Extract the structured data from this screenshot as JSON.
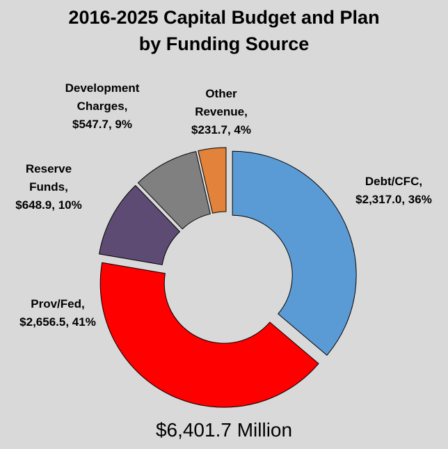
{
  "page": {
    "background": "#D9D9D9"
  },
  "title": {
    "text": "2016-2025 Capital Budget and Plan\nby Funding Source"
  },
  "total": {
    "text": "$6,401.7 Million"
  },
  "callouts": {
    "development_charges": "Development\nCharges,\n$547.7, 9%",
    "other_revenue": "Other\nRevenue,\n$231.7, 4%",
    "debt_cfc": "Debt/CFC,\n$2,317.0, 36%",
    "reserve_funds": "Reserve\nFunds,\n$648.9, 10%",
    "prov_fed": "Prov/Fed,\n$2,656.5, 41%"
  },
  "chart_data": {
    "type": "pie",
    "subtype": "donut",
    "title": "2016-2025 Capital Budget and Plan by Funding Source",
    "total_label": "$6,401.7 Million",
    "total_value": 6401.7,
    "direction": "clockwise",
    "start_angle_deg": 0,
    "donut_hole_ratio": 0.48,
    "legend": "none (data labels placed around chart)",
    "slices": [
      {
        "label": "Debt/CFC",
        "value": 2317.0,
        "pct": 36,
        "color": "#5B9BD5"
      },
      {
        "label": "Prov/Fed",
        "value": 2656.5,
        "pct": 41,
        "color": "#FF0000"
      },
      {
        "label": "Reserve Funds",
        "value": 648.9,
        "pct": 10,
        "color": "#5D4B73"
      },
      {
        "label": "Development Charges",
        "value": 547.7,
        "pct": 9,
        "color": "#808080"
      },
      {
        "label": "Other Revenue",
        "value": 231.7,
        "pct": 4,
        "color": "#E2823B"
      }
    ]
  }
}
